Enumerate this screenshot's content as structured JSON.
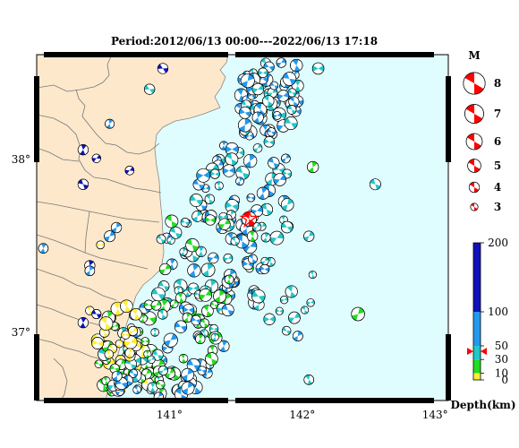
{
  "title": "Period:2012/06/13 00:00---2022/06/13 17:18",
  "colors": {
    "land": "#fde8cc",
    "sea": "#dffcff",
    "event_red": "#ff0000",
    "depth_0_10": "#ffee33",
    "depth_10_30": "#22dd22",
    "depth_30_50": "#22c8c8",
    "depth_50_100": "#2299ee",
    "depth_100_200": "#1111bb"
  },
  "map": {
    "lon_range": [
      140.0,
      143.1
    ],
    "lat_range": [
      36.6,
      38.6
    ],
    "lon_ticks": [
      {
        "value": 141,
        "label": "141°"
      },
      {
        "value": 142,
        "label": "142°"
      },
      {
        "value": 143,
        "label": "143°"
      }
    ],
    "lat_ticks": [
      {
        "value": 37,
        "label": "37°"
      },
      {
        "value": 38,
        "label": "38°"
      }
    ]
  },
  "magnitude_legend": {
    "title": "M",
    "items": [
      {
        "label": "8",
        "value": 8
      },
      {
        "label": "7",
        "value": 7
      },
      {
        "label": "6",
        "value": 6
      },
      {
        "label": "5",
        "value": 5
      },
      {
        "label": "4",
        "value": 4
      },
      {
        "label": "3",
        "value": 3
      }
    ]
  },
  "depth_scale": {
    "title": "Depth(km)",
    "max": 200,
    "tick_labels": [
      {
        "value": 200,
        "label": "200"
      },
      {
        "value": 100,
        "label": "100"
      },
      {
        "value": 50,
        "label": "50"
      },
      {
        "value": 30,
        "label": "30"
      },
      {
        "value": 10,
        "label": "10"
      },
      {
        "value": 0,
        "label": "0"
      }
    ],
    "marker_value": 42
  },
  "highlight_event": {
    "lon": 141.6,
    "lat": 37.65,
    "mag": 5.5,
    "depth": 42
  }
}
